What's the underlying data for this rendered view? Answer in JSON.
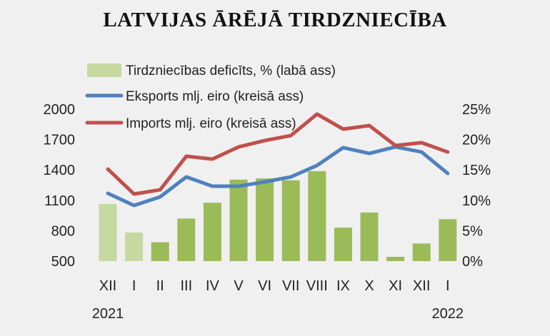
{
  "chart_data": {
    "type": "bar+line",
    "title": "LATVIJAS ĀRĒJĀ TIRDZNIECĪBA",
    "categories": [
      "XII",
      "I",
      "II",
      "III",
      "IV",
      "V",
      "VI",
      "VII",
      "VIII",
      "IX",
      "X",
      "XI",
      "XII",
      "I"
    ],
    "year_labels": [
      {
        "index": 0,
        "label": "2021"
      },
      {
        "index": 13,
        "label": "2022"
      }
    ],
    "left_axis": {
      "ylim": [
        500,
        2000
      ],
      "ticks": [
        500,
        800,
        1100,
        1400,
        1700,
        2000
      ]
    },
    "right_axis": {
      "ylim": [
        0,
        25
      ],
      "ticks": [
        "0%",
        "5%",
        "10%",
        "15%",
        "20%",
        "25%"
      ]
    },
    "series": [
      {
        "name": "Tirdzniecības deficīts, % (labā ass)",
        "type": "bar",
        "axis": "right",
        "color": "#9bbb59",
        "highlight_color": "#c6d9a0",
        "highlight_indices": [
          0,
          1
        ],
        "values": [
          9.4,
          4.7,
          3.1,
          7.0,
          9.6,
          13.4,
          13.6,
          13.3,
          14.8,
          5.5,
          8.0,
          0.7,
          2.9,
          6.9
        ]
      },
      {
        "name": "Eksports mlj. eiro (kreisā ass)",
        "type": "line",
        "axis": "left",
        "color": "#4f81bd",
        "values": [
          1169,
          1049,
          1134,
          1331,
          1239,
          1239,
          1282,
          1331,
          1444,
          1620,
          1563,
          1627,
          1577,
          1366
        ]
      },
      {
        "name": "Imports mlj. eiro (kreisā ass)",
        "type": "line",
        "axis": "left",
        "color": "#c0504d",
        "values": [
          1408,
          1162,
          1204,
          1535,
          1507,
          1627,
          1690,
          1739,
          1951,
          1803,
          1838,
          1641,
          1669,
          1577
        ]
      }
    ],
    "grid": false,
    "legend_position": "top-left"
  }
}
